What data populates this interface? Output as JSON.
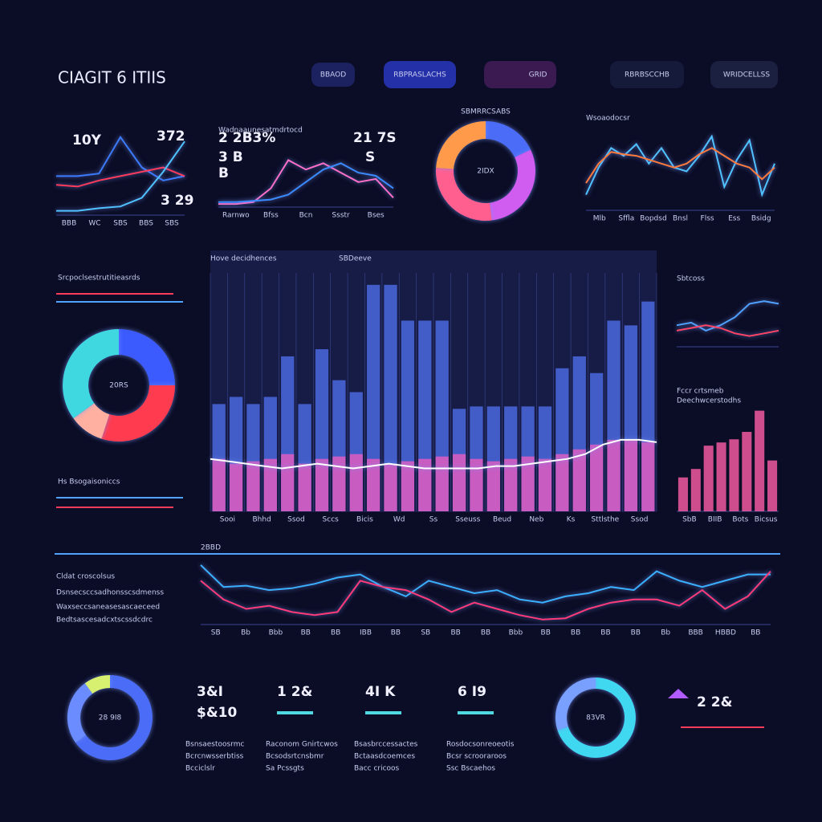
{
  "header": {
    "title": "CIAGIT 6 ITIIS",
    "tabs": [
      "BBAOD",
      "RBPRASLACHS",
      "GRID",
      "RBRBSCCHB",
      "WRIDCELLSS"
    ]
  },
  "charts": {
    "spark": {
      "type": "line",
      "labels": [
        "10Y",
        "372",
        "3 29"
      ],
      "x_labels": [
        "BBB",
        "WC",
        "SBS",
        "BBS",
        "SBS"
      ],
      "ylim": [
        0,
        100
      ],
      "series": [
        {
          "color": "#3a7bff",
          "values": [
            45,
            45,
            48,
            90,
            55,
            40,
            45
          ]
        },
        {
          "color": "#ff3b5c",
          "values": [
            35,
            33,
            40,
            45,
            50,
            55,
            45
          ]
        },
        {
          "color": "#4fc3ff",
          "values": [
            5,
            5,
            8,
            10,
            20,
            50,
            85
          ]
        }
      ]
    },
    "mid_line": {
      "type": "line",
      "title": "Wadnaaunesatmdrtocd",
      "labels": [
        "2 2B3%",
        "21 7S",
        "3 B",
        "S",
        "B"
      ],
      "x_labels": [
        "Rarnwo",
        "Bfss",
        "Bcn",
        "Ssstr",
        "Bses"
      ],
      "ylim": [
        0,
        100
      ],
      "series": [
        {
          "color": "#ff6ec7",
          "values": [
            5,
            5,
            8,
            30,
            75,
            60,
            70,
            55,
            40,
            45,
            15
          ]
        },
        {
          "color": "#3a8bff",
          "values": [
            8,
            8,
            10,
            12,
            20,
            40,
            60,
            70,
            55,
            50,
            30
          ]
        }
      ]
    },
    "top_line": {
      "type": "line",
      "title": "Wsoaodocsr",
      "x_labels": [
        "Mlb",
        "Sffla",
        "Bopdsd",
        "Bnsl",
        "Flss",
        "Ess",
        "Bsidg"
      ],
      "ylim": [
        0,
        100
      ],
      "series": [
        {
          "color": "#4fc3ff",
          "values": [
            20,
            55,
            80,
            70,
            85,
            60,
            80,
            55,
            50,
            70,
            95,
            30,
            65,
            90,
            20,
            60
          ]
        },
        {
          "color": "#ff7a3b",
          "values": [
            35,
            60,
            75,
            72,
            70,
            65,
            60,
            55,
            60,
            72,
            80,
            70,
            60,
            55,
            40,
            55
          ]
        }
      ]
    },
    "main_bar": {
      "type": "bar",
      "title": "Hove decidhences",
      "subtitle": "SBDeeve",
      "x_labels": [
        "Sooi",
        "Bhhd",
        "Ssod",
        "Sccs",
        "Bicis",
        "Wd",
        "Ss",
        "Sseuss",
        "Beud",
        "Neb",
        "Ks",
        "Sttlsthe",
        "Ssod"
      ],
      "ylim": [
        0,
        100
      ],
      "series": [
        {
          "color": "#4f6ee8",
          "values": [
            45,
            48,
            45,
            48,
            65,
            45,
            68,
            55,
            50,
            95,
            95,
            80,
            80,
            80,
            43,
            44,
            44,
            44,
            44,
            44,
            60,
            65,
            58,
            80,
            78,
            88
          ]
        },
        {
          "color": "#e05cc0",
          "values": [
            22,
            20,
            21,
            22,
            24,
            20,
            22,
            23,
            24,
            22,
            20,
            21,
            22,
            23,
            24,
            22,
            21,
            22,
            23,
            22,
            24,
            26,
            28,
            30,
            30,
            29
          ]
        },
        {
          "type": "line",
          "color": "#ffffff",
          "values": [
            22,
            21,
            20,
            19,
            18,
            19,
            20,
            19,
            18,
            19,
            20,
            19,
            18,
            18,
            18,
            18,
            19,
            19,
            20,
            21,
            22,
            24,
            28,
            30,
            30,
            29
          ]
        }
      ]
    },
    "right_line": {
      "type": "line",
      "title": "Sbtcoss",
      "ylim": [
        0,
        100
      ],
      "series": [
        {
          "color": "#4fa3ff",
          "values": [
            40,
            45,
            30,
            40,
            55,
            80,
            85,
            80
          ]
        },
        {
          "color": "#ff4466",
          "values": [
            30,
            35,
            40,
            35,
            25,
            20,
            25,
            30
          ]
        }
      ]
    },
    "right_bars": {
      "type": "bar",
      "title": "Fccr crtsmeb",
      "subtitle": "Deechwcerstodhs",
      "x_labels": [
        "SbB",
        "BIIB",
        "Bots",
        "Bicsus"
      ],
      "ylim": [
        0,
        100
      ],
      "series": [
        {
          "color": "#ff5fa8",
          "values": [
            32,
            40,
            62,
            65,
            68,
            75,
            95,
            48
          ]
        }
      ]
    },
    "bottom_line": {
      "type": "line",
      "title": "2BBD",
      "x_labels": [
        "SB",
        "Bb",
        "Bbb",
        "BB",
        "BB",
        "IBB",
        "BB",
        "SB",
        "BB",
        "BB",
        "Bbb",
        "BB",
        "BB",
        "BB",
        "BB",
        "Bb",
        "BBB",
        "HBBD",
        "BB"
      ],
      "ylim": [
        0,
        100
      ],
      "series": [
        {
          "color": "#3ab0ff",
          "values": [
            95,
            60,
            62,
            55,
            58,
            65,
            75,
            80,
            60,
            45,
            70,
            60,
            50,
            55,
            40,
            35,
            45,
            50,
            60,
            55,
            85,
            70,
            60,
            70,
            80,
            80
          ]
        },
        {
          "color": "#ff3b7a",
          "values": [
            70,
            40,
            25,
            30,
            20,
            15,
            20,
            70,
            60,
            55,
            40,
            20,
            35,
            25,
            15,
            8,
            10,
            25,
            35,
            40,
            40,
            30,
            55,
            25,
            45,
            85
          ]
        }
      ]
    }
  },
  "donuts": {
    "top_donut": {
      "title": "SBMRRCSABS",
      "center": "2IDX",
      "values": [
        18,
        30,
        28,
        24
      ],
      "colors": [
        "#4a6cf7",
        "#d05cf0",
        "#ff5f8f",
        "#ff9a4a"
      ]
    },
    "left_donut": {
      "center": "20RS",
      "values": [
        25,
        30,
        10,
        35
      ],
      "colors": [
        "#3b5bff",
        "#ff3b4f",
        "#ffb0a0",
        "#3fd8e0",
        "#ff8a4a"
      ]
    },
    "donut_a": {
      "center": "28 9I8",
      "values": [
        65,
        25,
        10
      ],
      "colors": [
        "#4a6cf7",
        "#6a8cff",
        "#d8f070"
      ]
    },
    "donut_b": {
      "center": "83VR",
      "values": [
        70,
        30
      ],
      "colors": [
        "#3fd8f0",
        "#7aa0ff"
      ]
    }
  },
  "texts": {
    "notes": [
      "Srcpoclsestrutitieasrds",
      "Hs  Bsogaisoniccs",
      "Cldat croscolsus",
      "Dsnsecsccsadhonsscsdmenss",
      "Waxseccsaneasesascaeceed",
      "Bedtsascesadcxtscssdcdrc"
    ],
    "kpis": [
      {
        "value": "3&I",
        "sub": "$&10",
        "lines": [
          "Bsnsaestoosrmc",
          "Bcrcnwsserbtiss",
          "Bcciclslr"
        ]
      },
      {
        "value": "1 2&",
        "sub": "",
        "lines": [
          "Raconom Gnirtcwos",
          "Bcsodsrtcnsbmr",
          "Sa  Pcssgts"
        ]
      },
      {
        "value": "4I K",
        "sub": "",
        "lines": [
          "Bsasbrccessactes",
          "Bctaasdcoemces",
          "Bacc cricoos"
        ]
      },
      {
        "value": "6 I9",
        "sub": "",
        "lines": [
          "Rosdocsonreoeotis",
          "Bcsr scrooraroos",
          "Ssc Bscaehos"
        ]
      }
    ],
    "badge": "2 2&"
  }
}
